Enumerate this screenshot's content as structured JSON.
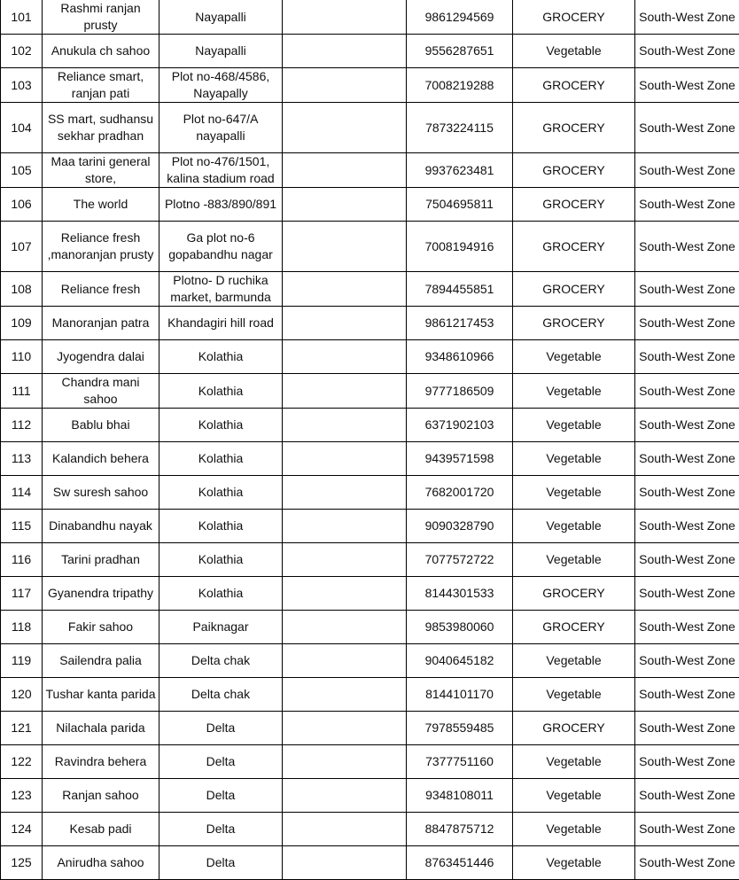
{
  "rows": [
    {
      "no": "101",
      "name": "Rashmi ranjan prusty",
      "address": "Nayapalli",
      "blank": "",
      "phone": "9861294569",
      "category": "GROCERY",
      "zone": "South-West Zone"
    },
    {
      "no": "102",
      "name": "Anukula ch sahoo",
      "address": "Nayapalli",
      "blank": "",
      "phone": "9556287651",
      "category": "Vegetable",
      "zone": "South-West Zone"
    },
    {
      "no": "103",
      "name": "Reliance smart, ranjan pati",
      "address": "Plot no-468/4586, Nayapally",
      "blank": "",
      "phone": "7008219288",
      "category": "GROCERY",
      "zone": "South-West Zone"
    },
    {
      "no": "104",
      "name": "SS mart, sudhansu sekhar pradhan",
      "address": "Plot no-647/A nayapalli",
      "blank": "",
      "phone": "7873224115",
      "category": "GROCERY",
      "zone": "South-West Zone"
    },
    {
      "no": "105",
      "name": "Maa tarini general store,",
      "address": "Plot no-476/1501, kalina stadium road",
      "blank": "",
      "phone": "9937623481",
      "category": "GROCERY",
      "zone": "South-West Zone"
    },
    {
      "no": "106",
      "name": "The world",
      "address": "Plotno -883/890/891",
      "blank": "",
      "phone": "7504695811",
      "category": "GROCERY",
      "zone": "South-West Zone"
    },
    {
      "no": "107",
      "name": "Reliance fresh ,manoranjan prusty",
      "address": "Ga plot no-6 gopabandhu nagar",
      "blank": "",
      "phone": "7008194916",
      "category": "GROCERY",
      "zone": "South-West Zone"
    },
    {
      "no": "108",
      "name": "Reliance fresh",
      "address": "Plotno- D ruchika market, barmunda",
      "blank": "",
      "phone": "7894455851",
      "category": "GROCERY",
      "zone": "South-West Zone"
    },
    {
      "no": "109",
      "name": "Manoranjan patra",
      "address": "Khandagiri hill road",
      "blank": "",
      "phone": "9861217453",
      "category": "GROCERY",
      "zone": "South-West Zone"
    },
    {
      "no": "110",
      "name": "Jyogendra dalai",
      "address": "Kolathia",
      "blank": "",
      "phone": "9348610966",
      "category": "Vegetable",
      "zone": "South-West Zone"
    },
    {
      "no": "111",
      "name": "Chandra mani sahoo",
      "address": "Kolathia",
      "blank": "",
      "phone": "9777186509",
      "category": "Vegetable",
      "zone": "South-West Zone"
    },
    {
      "no": "112",
      "name": "Bablu bhai",
      "address": "Kolathia",
      "blank": "",
      "phone": "6371902103",
      "category": "Vegetable",
      "zone": "South-West Zone"
    },
    {
      "no": "113",
      "name": "Kalandich behera",
      "address": "Kolathia",
      "blank": "",
      "phone": "9439571598",
      "category": "Vegetable",
      "zone": "South-West Zone"
    },
    {
      "no": "114",
      "name": "Sw suresh sahoo",
      "address": "Kolathia",
      "blank": "",
      "phone": "7682001720",
      "category": "Vegetable",
      "zone": "South-West Zone"
    },
    {
      "no": "115",
      "name": "Dinabandhu nayak",
      "address": "Kolathia",
      "blank": "",
      "phone": "9090328790",
      "category": "Vegetable",
      "zone": "South-West Zone"
    },
    {
      "no": "116",
      "name": "Tarini pradhan",
      "address": "Kolathia",
      "blank": "",
      "phone": "7077572722",
      "category": "Vegetable",
      "zone": "South-West Zone"
    },
    {
      "no": "117",
      "name": "Gyanendra tripathy",
      "address": "Kolathia",
      "blank": "",
      "phone": "8144301533",
      "category": "GROCERY",
      "zone": "South-West Zone"
    },
    {
      "no": "118",
      "name": "Fakir sahoo",
      "address": "Paiknagar",
      "blank": "",
      "phone": "9853980060",
      "category": "GROCERY",
      "zone": "South-West Zone"
    },
    {
      "no": "119",
      "name": "Sailendra palia",
      "address": "Delta chak",
      "blank": "",
      "phone": "9040645182",
      "category": "Vegetable",
      "zone": "South-West Zone"
    },
    {
      "no": "120",
      "name": "Tushar kanta parida",
      "address": "Delta chak",
      "blank": "",
      "phone": "8144101170",
      "category": "Vegetable",
      "zone": "South-West Zone"
    },
    {
      "no": "121",
      "name": "Nilachala parida",
      "address": "Delta",
      "blank": "",
      "phone": "7978559485",
      "category": "GROCERY",
      "zone": "South-West Zone"
    },
    {
      "no": "122",
      "name": "Ravindra behera",
      "address": "Delta",
      "blank": "",
      "phone": "7377751160",
      "category": "Vegetable",
      "zone": "South-West Zone"
    },
    {
      "no": "123",
      "name": "Ranjan sahoo",
      "address": "Delta",
      "blank": "",
      "phone": "9348108011",
      "category": "Vegetable",
      "zone": "South-West Zone"
    },
    {
      "no": "124",
      "name": "Kesab padi",
      "address": "Delta",
      "blank": "",
      "phone": "8847875712",
      "category": "Vegetable",
      "zone": "South-West Zone"
    },
    {
      "no": "125",
      "name": "Anirudha sahoo",
      "address": "Delta",
      "blank": "",
      "phone": "8763451446",
      "category": "Vegetable",
      "zone": "South-West Zone"
    }
  ]
}
